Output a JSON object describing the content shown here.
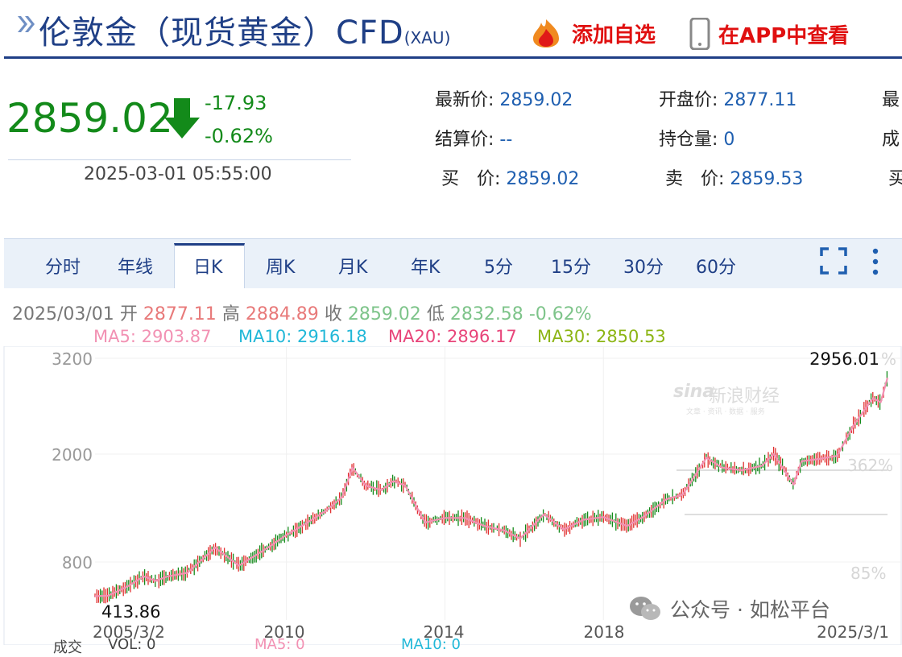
{
  "header": {
    "title": "伦敦金（现货黄金）CFD",
    "code": "(XAU)",
    "add_watch": "添加自选",
    "view_app": "在APP中查看"
  },
  "quote": {
    "price": "2859.02",
    "change": "-17.93",
    "change_pct": "-0.62%",
    "timestamp": "2025-03-01 05:55:00",
    "fields": [
      {
        "label": "最新价:",
        "value": "2859.02"
      },
      {
        "label": "开盘价:",
        "value": "2877.11"
      },
      {
        "label": "最",
        "value": ""
      },
      {
        "label": "结算价:",
        "value": "--"
      },
      {
        "label": "持仓量:",
        "value": "0"
      },
      {
        "label": "成",
        "value": ""
      },
      {
        "label": "买　价:",
        "value": "2859.02"
      },
      {
        "label": "卖　价:",
        "value": "2859.53"
      },
      {
        "label": "买",
        "value": ""
      }
    ]
  },
  "tabs": [
    "分时",
    "年线",
    "日K",
    "周K",
    "月K",
    "年K",
    "5分",
    "15分",
    "30分",
    "60分"
  ],
  "active_tab": "日K",
  "ohlc": {
    "date": "2025/03/01",
    "open_label": "开",
    "open": "2877.11",
    "high_label": "高",
    "high": "2884.89",
    "close_label": "收",
    "close": "2859.02",
    "low_label": "低",
    "low": "2832.58",
    "pct": "-0.62%"
  },
  "ma": [
    {
      "text": "MA5: 2903.87",
      "color": "#f291b3"
    },
    {
      "text": "MA10: 2916.18",
      "color": "#22b8d8"
    },
    {
      "text": "MA20: 2896.17",
      "color": "#e8457a"
    },
    {
      "text": "MA30: 2850.53",
      "color": "#8cb514"
    }
  ],
  "right_pcts": [
    "%",
    "362%",
    "85%"
  ],
  "watermark": {
    "logo": "sina",
    "text": "新浪财经",
    "sub": "文章 · 资讯 · 数据 · 服务"
  },
  "source_tag": "公众号 · 如松平台",
  "bottom_partial": [
    "成交",
    "VOL: 0",
    "MA5: 0",
    "MA10: 0"
  ],
  "colors": {
    "up": "#e03030",
    "down": "#138a1a",
    "brand": "#1f3f86",
    "ma5": "#f291b3"
  },
  "chart_data": {
    "type": "line",
    "y_ticks": [
      "3200",
      "2000",
      "800"
    ],
    "x_ticks": [
      "2005/3/2",
      "2010",
      "2014",
      "2018",
      "2025/3/1"
    ],
    "min_label": "413.86",
    "max_label": "2956.01",
    "series": [
      {
        "x": [
          2005.17,
          2005.5,
          2006.0,
          2006.4,
          2006.7,
          2007.0,
          2007.5,
          2008.2,
          2008.8,
          2009.5,
          2010.0,
          2010.5,
          2011.0,
          2011.4,
          2011.67,
          2012.0,
          2012.4,
          2012.7,
          2013.0,
          2013.3,
          2013.5,
          2014.0,
          2014.5,
          2015.0,
          2015.5,
          2015.9,
          2016.5,
          2017.0,
          2017.5,
          2018.0,
          2018.6,
          2019.0,
          2019.6,
          2020.0,
          2020.6,
          2021.0,
          2021.5,
          2022.0,
          2022.3,
          2022.8,
          2023.0,
          2023.5,
          2023.9,
          2024.3,
          2024.8,
          2025.0,
          2025.17
        ],
        "y": [
          420,
          425,
          530,
          640,
          590,
          640,
          680,
          960,
          760,
          950,
          1100,
          1230,
          1370,
          1520,
          1850,
          1650,
          1600,
          1700,
          1650,
          1400,
          1240,
          1290,
          1290,
          1200,
          1150,
          1060,
          1330,
          1160,
          1270,
          1300,
          1200,
          1300,
          1500,
          1550,
          1960,
          1850,
          1820,
          1870,
          2000,
          1660,
          1920,
          1950,
          1980,
          2350,
          2700,
          2650,
          2956
        ]
      }
    ]
  }
}
